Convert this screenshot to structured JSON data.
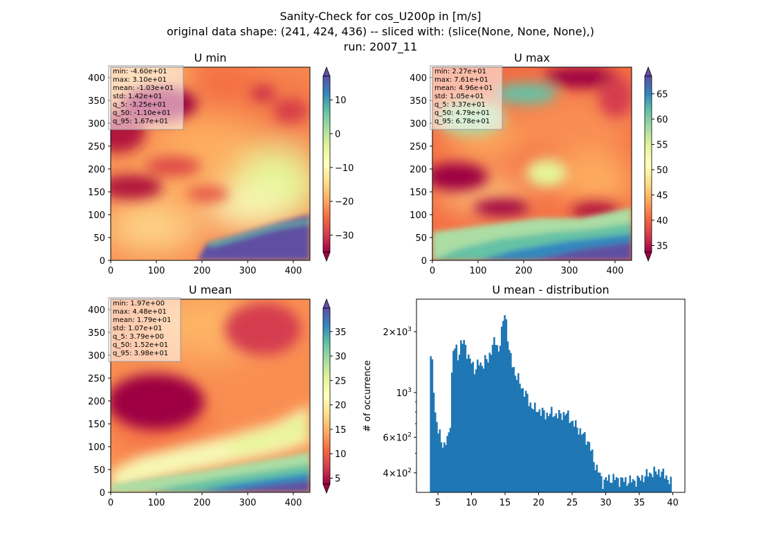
{
  "figure": {
    "suptitle_lines": [
      "Sanity-Check for cos_U200p in [m/s]",
      "original data shape: (241, 424, 436) -- sliced with: (slice(None, None, None),)",
      "run: 2007_11"
    ]
  },
  "colors": {
    "hist_bar": "#1f77b4",
    "stats_box_bg": "#ffffff",
    "stats_box_border": "#999999"
  },
  "chart_data": [
    {
      "type": "heatmap",
      "title": "U min",
      "colormap": "Spectral",
      "xlim": [
        0,
        436
      ],
      "ylim": [
        0,
        424
      ],
      "x_ticks": [
        "0",
        "100",
        "200",
        "300",
        "400"
      ],
      "y_ticks": [
        "0",
        "50",
        "100",
        "150",
        "200",
        "250",
        "300",
        "350",
        "400"
      ],
      "colorbar": {
        "range": [
          -35,
          17
        ],
        "ticks": [
          "−30",
          "−20",
          "−10",
          "0",
          "10"
        ],
        "tick_values": [
          -30,
          -20,
          -10,
          0,
          10
        ],
        "extend": "both"
      },
      "stats": [
        "min: -4.60e+01",
        "max: 3.10e+01",
        "mean: -1.03e+01",
        "std: 1.42e+01",
        "q_5: -3.25e+01",
        "q_50: -1.10e+01",
        "q_95: 1.67e+01"
      ]
    },
    {
      "type": "heatmap",
      "title": "U max",
      "colormap": "Spectral",
      "xlim": [
        0,
        436
      ],
      "ylim": [
        0,
        424
      ],
      "x_ticks": [
        "0",
        "100",
        "200",
        "300",
        "400"
      ],
      "y_ticks": [
        "0",
        "50",
        "100",
        "150",
        "200",
        "250",
        "300",
        "350",
        "400"
      ],
      "colorbar": {
        "range": [
          33.7,
          68.5
        ],
        "ticks": [
          "35",
          "40",
          "45",
          "50",
          "55",
          "60",
          "65"
        ],
        "tick_values": [
          35,
          40,
          45,
          50,
          55,
          60,
          65
        ],
        "extend": "both"
      },
      "stats": [
        "min: 2.27e+01",
        "max: 7.61e+01",
        "mean: 4.96e+01",
        "std: 1.05e+01",
        "q_5: 3.37e+01",
        "q_50: 4.79e+01",
        "q_95: 6.78e+01"
      ]
    },
    {
      "type": "heatmap",
      "title": "U mean",
      "colormap": "Spectral",
      "xlim": [
        0,
        436
      ],
      "ylim": [
        0,
        424
      ],
      "x_ticks": [
        "0",
        "100",
        "200",
        "300",
        "400"
      ],
      "y_ticks": [
        "0",
        "50",
        "100",
        "150",
        "200",
        "250",
        "300",
        "350",
        "400"
      ],
      "colorbar": {
        "range": [
          3.79,
          39.8
        ],
        "ticks": [
          "5",
          "10",
          "15",
          "20",
          "25",
          "30",
          "35"
        ],
        "tick_values": [
          5,
          10,
          15,
          20,
          25,
          30,
          35
        ],
        "extend": "both"
      },
      "stats": [
        "min: 1.97e+00",
        "max: 4.48e+01",
        "mean: 1.79e+01",
        "std: 1.07e+01",
        "q_5: 3.79e+00",
        "q_50: 1.52e+01",
        "q_95: 3.98e+01"
      ]
    },
    {
      "type": "bar",
      "title": "U mean - distribution",
      "ylabel": "# of occurrence",
      "xlabel": "",
      "yscale": "log",
      "xlim": [
        1.8,
        41.8
      ],
      "ylim": [
        320,
        2900
      ],
      "x_ticks": [
        "5",
        "10",
        "15",
        "20",
        "25",
        "30",
        "35",
        "40"
      ],
      "x_tick_values": [
        5,
        10,
        15,
        20,
        25,
        30,
        35,
        40
      ],
      "y_ticks": [
        {
          "value": 2000,
          "mantissa": "2",
          "exp": "3"
        },
        {
          "value": 1000,
          "mantissa": "",
          "exp": "3"
        },
        {
          "value": 600,
          "mantissa": "6",
          "exp": "2"
        },
        {
          "value": 400,
          "mantissa": "4",
          "exp": "2"
        }
      ],
      "profile_x": [
        3.8,
        4.0,
        4.3,
        4.6,
        5.0,
        5.3,
        5.6,
        6.0,
        6.4,
        6.8,
        7.2,
        7.6,
        8.0,
        8.5,
        9.0,
        9.5,
        10.0,
        10.5,
        11.0,
        11.5,
        12.0,
        12.5,
        13.0,
        13.5,
        14.0,
        14.5,
        14.8,
        15.0,
        15.3,
        15.6,
        16.0,
        16.5,
        17.0,
        17.5,
        18.0,
        18.5,
        19.0,
        19.5,
        20.0,
        21.0,
        22.0,
        23.0,
        24.0,
        24.6,
        25.2,
        26.0,
        26.5,
        27.0,
        27.5,
        28.0,
        28.5,
        29.0,
        29.5,
        30.0,
        31.0,
        32.0,
        33.0,
        34.0,
        35.0,
        36.0,
        36.5,
        37.0,
        37.5,
        38.0,
        38.5,
        39.0,
        39.4,
        39.8
      ],
      "profile_y": [
        1300,
        1600,
        1150,
        780,
        640,
        610,
        570,
        540,
        590,
        640,
        1550,
        1700,
        1500,
        1780,
        1750,
        1500,
        1400,
        1300,
        1400,
        1350,
        1460,
        1420,
        1700,
        1800,
        1600,
        2000,
        2350,
        2500,
        2050,
        1600,
        1400,
        1250,
        1150,
        1050,
        1000,
        900,
        860,
        820,
        820,
        780,
        790,
        770,
        790,
        750,
        700,
        660,
        620,
        600,
        560,
        490,
        430,
        400,
        360,
        370,
        375,
        370,
        365,
        365,
        370,
        390,
        395,
        405,
        400,
        410,
        395,
        385,
        370,
        350
      ]
    }
  ]
}
